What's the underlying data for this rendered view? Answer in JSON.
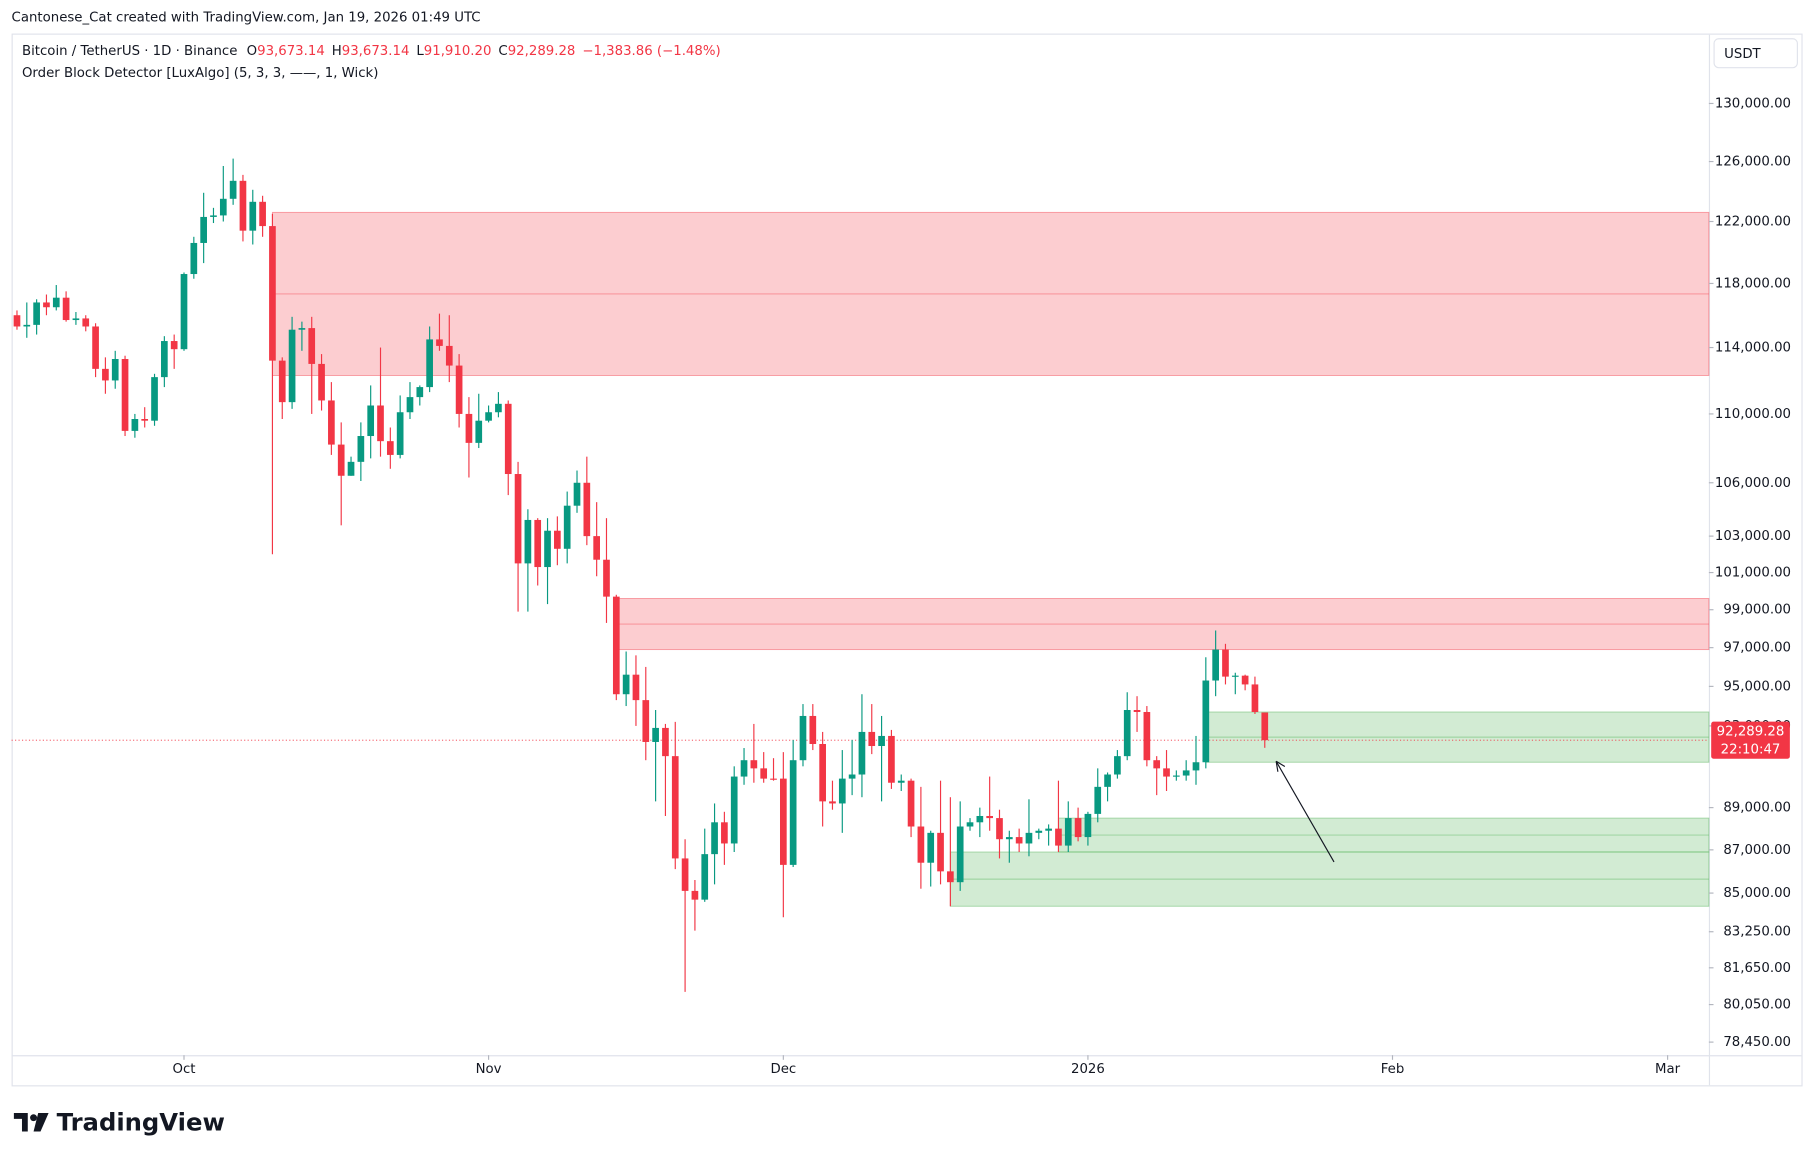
{
  "header": {
    "credit": "Cantonese_Cat created with TradingView.com, Jan 19, 2026 01:49 UTC",
    "symbol": "Bitcoin / TetherUS · 1D · Binance",
    "ohlc": [
      {
        "key": "O",
        "value": "93,673.14"
      },
      {
        "key": "H",
        "value": "93,673.14"
      },
      {
        "key": "L",
        "value": "91,910.20"
      },
      {
        "key": "C",
        "value": "92,289.28"
      }
    ],
    "change": "−1,383.86 (−1.48%)",
    "indicator": "Order Block Detector [LuxAlgo] (5, 3, 3, ——, 1, Wick)"
  },
  "currency": "USDT",
  "brand": "TradingView",
  "chart_data": {
    "type": "candlestick",
    "log_scale": true,
    "up_color": "#089981",
    "down_color": "#f23645",
    "open": [
      116000,
      115300,
      115400,
      116800,
      116500,
      117100,
      115700,
      115800,
      115300,
      112700,
      112000,
      113300,
      109000,
      109700,
      109600,
      112200,
      114400,
      113900,
      118600,
      120600,
      122300,
      122400,
      123500,
      124700,
      121400,
      123300,
      121700,
      113200,
      110700,
      115100,
      115200,
      113000,
      110800,
      108200,
      106400,
      107200,
      108700,
      110500,
      108400,
      107600,
      110100,
      111000,
      111600,
      114500,
      114100,
      112900,
      110000,
      108300,
      109600,
      110100,
      110600,
      106500,
      101500,
      103900,
      101300,
      103300,
      102300,
      104700,
      106000,
      103000,
      101700,
      99700,
      94600,
      95600,
      94300,
      92200,
      92900,
      91500,
      86600,
      85100,
      84700,
      86800,
      88300,
      87300,
      90500,
      91300,
      90900,
      90400,
      90400,
      86300,
      91300,
      93500,
      92100,
      89300,
      89200,
      90400,
      90600,
      92700,
      92000,
      92500,
      90200,
      90300,
      88100,
      86400,
      87800,
      86000,
      85500,
      88100,
      88300,
      88600,
      88500,
      87500,
      87600,
      87300,
      87800,
      87900,
      88000,
      87200,
      88500,
      87600,
      88700,
      90000,
      90600,
      91500,
      93800,
      93700,
      91300,
      90900,
      90500,
      90550,
      90800,
      91200,
      95300,
      96900,
      95500,
      95550,
      95100,
      93673.14
    ],
    "high": [
      116300,
      116800,
      117000,
      117300,
      117900,
      117500,
      116200,
      116000,
      115500,
      113400,
      113800,
      113500,
      110000,
      110400,
      112400,
      114700,
      114800,
      118700,
      121000,
      123900,
      122900,
      125700,
      126200,
      125100,
      124100,
      123700,
      122500,
      113400,
      115900,
      115600,
      115900,
      113600,
      111900,
      109500,
      107500,
      109500,
      111700,
      114000,
      109200,
      111100,
      111900,
      111700,
      115300,
      116100,
      116000,
      113600,
      111000,
      111200,
      110500,
      111300,
      110800,
      107200,
      104500,
      104000,
      104000,
      104100,
      105500,
      106700,
      107500,
      104900,
      104000,
      99800,
      96800,
      96600,
      96000,
      93800,
      93100,
      93200,
      87500,
      85600,
      88000,
      89200,
      88800,
      91000,
      91900,
      93100,
      91700,
      91400,
      91700,
      92300,
      94100,
      94100,
      92700,
      90300,
      91800,
      92300,
      94600,
      94100,
      93500,
      92800,
      90600,
      90400,
      90000,
      87900,
      90300,
      89500,
      89300,
      88500,
      89000,
      90500,
      88900,
      87900,
      88000,
      89400,
      88000,
      88200,
      90300,
      89300,
      89000,
      88800,
      90900,
      90700,
      91800,
      94700,
      94500,
      94000,
      91500,
      91800,
      90800,
      91300,
      92500,
      96500,
      97900,
      97200,
      95700,
      95600,
      95500,
      93673.14
    ],
    "low": [
      115100,
      114600,
      114800,
      116000,
      116300,
      115600,
      115400,
      115000,
      112200,
      111200,
      111500,
      108700,
      108600,
      109200,
      109300,
      111600,
      112700,
      113800,
      118300,
      119300,
      121900,
      122000,
      123100,
      120700,
      120500,
      121000,
      102000,
      109700,
      110300,
      113800,
      110000,
      110200,
      107600,
      103600,
      106400,
      106100,
      107400,
      107500,
      106800,
      107400,
      109700,
      110500,
      111300,
      113800,
      111900,
      109200,
      106300,
      108000,
      109500,
      109800,
      105300,
      98900,
      98900,
      100300,
      99300,
      101400,
      101500,
      104300,
      102500,
      100800,
      98300,
      94300,
      94000,
      93000,
      91300,
      89300,
      88600,
      86100,
      80600,
      83300,
      84600,
      85400,
      86300,
      86900,
      90100,
      90200,
      90200,
      90300,
      83900,
      86200,
      91000,
      91800,
      88100,
      88900,
      87800,
      89600,
      89500,
      91600,
      89300,
      89900,
      89800,
      87600,
      85200,
      85300,
      85400,
      84400,
      85100,
      87900,
      87600,
      87900,
      86600,
      86400,
      86900,
      86700,
      87500,
      87200,
      86900,
      86900,
      87400,
      87200,
      88300,
      89300,
      90400,
      91300,
      92700,
      91000,
      89600,
      89800,
      90300,
      90300,
      90100,
      90900,
      94500,
      95100,
      94600,
      94800,
      93600,
      91910.2
    ],
    "close": [
      115300,
      115400,
      116800,
      116500,
      117100,
      115700,
      115800,
      115300,
      112700,
      112000,
      113300,
      109000,
      109700,
      109600,
      112200,
      114400,
      113900,
      118600,
      120600,
      122300,
      122400,
      123500,
      124700,
      121400,
      123300,
      121700,
      113200,
      110700,
      115100,
      115200,
      113000,
      110800,
      108200,
      106400,
      107200,
      108700,
      110500,
      108400,
      107600,
      110100,
      111000,
      111600,
      114500,
      114100,
      112900,
      110000,
      108300,
      109600,
      110100,
      110600,
      106500,
      101500,
      103900,
      101300,
      103300,
      102300,
      104700,
      106000,
      103000,
      101700,
      99700,
      94600,
      95600,
      94300,
      92200,
      92900,
      91500,
      86600,
      85100,
      84700,
      86800,
      88300,
      87300,
      90500,
      91300,
      90900,
      90400,
      90350,
      86300,
      91300,
      93500,
      92100,
      89300,
      89200,
      90400,
      90600,
      92700,
      92000,
      92500,
      90200,
      90300,
      88100,
      86400,
      87800,
      86000,
      85500,
      88100,
      88300,
      88600,
      88500,
      87500,
      87600,
      87300,
      87800,
      87900,
      88000,
      87200,
      88500,
      87600,
      88700,
      90000,
      90600,
      91500,
      93800,
      93700,
      91300,
      90900,
      90500,
      90550,
      90800,
      91200,
      95300,
      96900,
      95500,
      95550,
      95100,
      93700,
      92289.28
    ],
    "xlim": [
      -0.55,
      172.2
    ],
    "xticks": [
      {
        "value": 17,
        "label": "Oct"
      },
      {
        "value": 48,
        "label": "Nov"
      },
      {
        "value": 78,
        "label": "Dec"
      },
      {
        "value": 109,
        "label": "2026"
      },
      {
        "value": 140,
        "label": "Feb"
      },
      {
        "value": 168,
        "label": "Mar"
      }
    ],
    "ylim": [
      77900,
      134900
    ],
    "yticks": [
      {
        "value": 130000,
        "label": "130,000.00"
      },
      {
        "value": 126000,
        "label": "126,000.00"
      },
      {
        "value": 122000,
        "label": "122,000.00"
      },
      {
        "value": 118000,
        "label": "118,000.00"
      },
      {
        "value": 114000,
        "label": "114,000.00"
      },
      {
        "value": 110000,
        "label": "110,000.00"
      },
      {
        "value": 106000,
        "label": "106,000.00"
      },
      {
        "value": 103000,
        "label": "103,000.00"
      },
      {
        "value": 101000,
        "label": "101,000.00"
      },
      {
        "value": 99000,
        "label": "99,000.00"
      },
      {
        "value": 97000,
        "label": "97,000.00"
      },
      {
        "value": 95000,
        "label": "95,000.00"
      },
      {
        "value": 93000,
        "label": "93,000.00"
      },
      {
        "value": 89000,
        "label": "89,000.00"
      },
      {
        "value": 87000,
        "label": "87,000.00"
      },
      {
        "value": 85000,
        "label": "85,000.00"
      },
      {
        "value": 83250,
        "label": "83,250.00"
      },
      {
        "value": 81650,
        "label": "81,650.00"
      },
      {
        "value": 80050,
        "label": "80,050.00"
      },
      {
        "value": 78450,
        "label": "78,450.00"
      }
    ],
    "order_blocks": [
      {
        "start": 26,
        "top": 122600,
        "bottom": 112300,
        "color": "#f23645"
      },
      {
        "start": 61,
        "top": 99600,
        "bottom": 96900,
        "color": "#f23645"
      },
      {
        "start": 95,
        "top": 86900,
        "bottom": 84400,
        "color": "#4caf50"
      },
      {
        "start": 106,
        "top": 88500,
        "bottom": 86900,
        "color": "#4caf50"
      },
      {
        "start": 121,
        "top": 93700,
        "bottom": 91200,
        "color": "#4caf50"
      }
    ],
    "last_price": {
      "value": 92289.28,
      "label": "92,289.28"
    },
    "countdown": "22:10:47"
  }
}
